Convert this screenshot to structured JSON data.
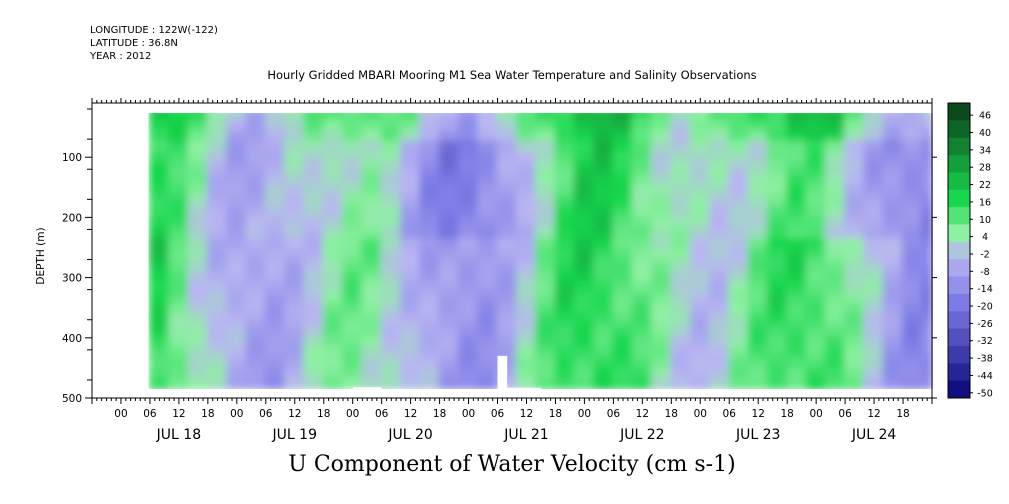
{
  "meta": {
    "longitude": "LONGITUDE : 122W(-122)",
    "latitude": "LATITUDE : 36.8N",
    "year": "YEAR : 2012"
  },
  "title": "Hourly Gridded MBARI Mooring M1 Sea Water Temperature and Salinity Observations",
  "variable_title": "U Component of Water Velocity (cm s-1)",
  "chart_data": {
    "type": "heatmap",
    "title": "Hourly Gridded MBARI Mooring M1 Sea Water Temperature and Salinity Observations",
    "xlabel": "",
    "ylabel": "DEPTH (m)",
    "x_axis": {
      "unit": "hours",
      "range": [
        "JUL 17 18:00",
        "JUL 24 23:00"
      ],
      "hour_tick_labels": [
        "00",
        "06",
        "12",
        "18"
      ],
      "day_labels": [
        "JUL 18",
        "JUL 19",
        "JUL 20",
        "JUL 21",
        "JUL 22",
        "JUL 23",
        "JUL 24"
      ],
      "data_start": "JUL 18 06:00"
    },
    "y_axis": {
      "range": [
        10,
        500
      ],
      "inverted": true,
      "ticks": [
        100,
        200,
        300,
        400,
        500
      ],
      "data_range": [
        20,
        485
      ]
    },
    "colorbar": {
      "levels": [
        46,
        40,
        34,
        28,
        22,
        16,
        10,
        4,
        -2,
        -8,
        -14,
        -20,
        -26,
        -32,
        -38,
        -44,
        -50
      ],
      "colors": {
        "dark_green": "#0c4a1c",
        "green": "#17d74d",
        "light_green": "#8ef0a2",
        "light_blue": "#b9b6f2",
        "blue": "#7d7be6",
        "dark_blue": "#101080"
      }
    },
    "pattern_summary": "Alternating vertical bands of positive (green, ~4 to 22) and negative (blue, ~-2 to -20) velocity through the water column"
  }
}
